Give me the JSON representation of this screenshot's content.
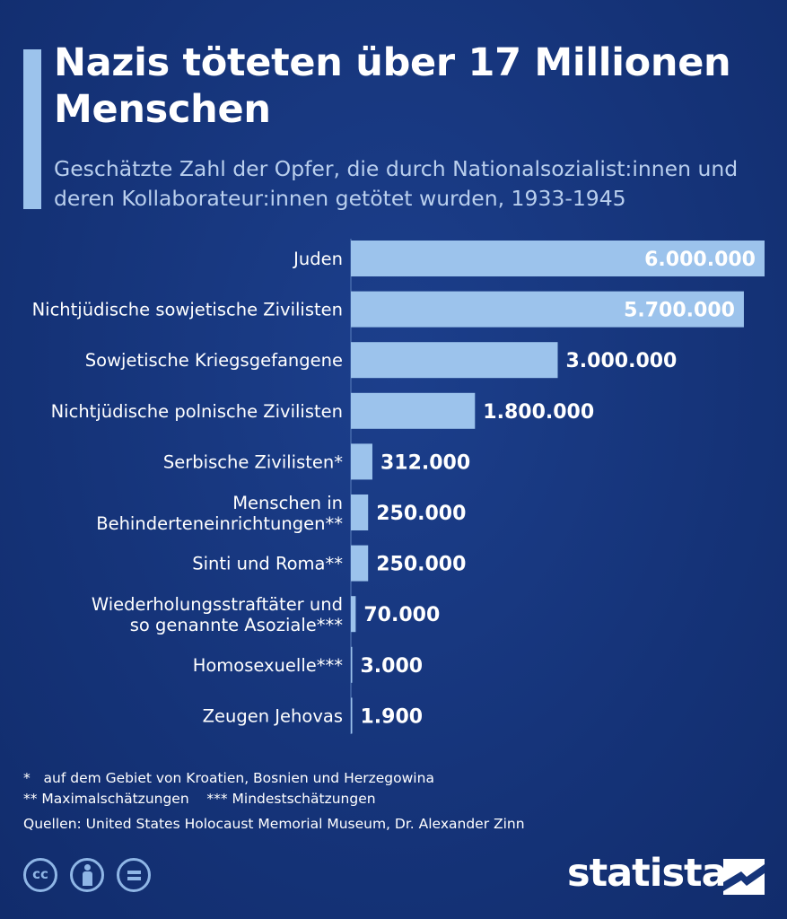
{
  "title": "Nazis töteten über 17 Millionen Menschen",
  "subtitle": "Geschätzte Zahl der Opfer, die durch Nationalsozialist:innen und deren Kollaborateur:innen getötet wurden, 1933-1945",
  "chart_data": {
    "type": "bar",
    "orientation": "horizontal",
    "title": "Nazis töteten über 17 Millionen Menschen",
    "subtitle": "Geschätzte Zahl der Opfer, die durch Nationalsozialist:innen und deren Kollaborateur:innen getötet wurden, 1933-1945",
    "categories": [
      [
        "Juden"
      ],
      [
        "Nichtjüdische sowjetische Zivilisten"
      ],
      [
        "Sowjetische Kriegsgefangene"
      ],
      [
        "Nichtjüdische polnische Zivilisten"
      ],
      [
        "Serbische Zivilisten*"
      ],
      [
        "Menschen in",
        "Behinderteneinrichtungen**"
      ],
      [
        "Sinti und Roma**"
      ],
      [
        "Wiederholungsstraftäter und",
        "so genannte Asoziale***"
      ],
      [
        "Homosexuelle***"
      ],
      [
        "Zeugen Jehovas"
      ]
    ],
    "values": [
      6000000,
      5700000,
      3000000,
      1800000,
      312000,
      250000,
      250000,
      70000,
      3000,
      1900
    ],
    "value_labels": [
      "6.000.000",
      "5.700.000",
      "3.000.000",
      "1.800.000",
      "312.000",
      "250.000",
      "250.000",
      "70.000",
      "3.000",
      "1.900"
    ],
    "xlim": [
      0,
      6000000
    ],
    "bar_color": "#9cc3ec",
    "grid": false,
    "legend": "none"
  },
  "footnotes": {
    "note1": "*   auf dem Gebiet von Kroatien, Bosnien und Herzegowina",
    "note2": "** Maximalschätzungen    *** Mindestschätzungen",
    "sources": "Quellen: United States Holocaust Memorial Museum, Dr. Alexander Zinn"
  },
  "license_icons": [
    "cc-icon",
    "by-icon",
    "nd-icon"
  ],
  "brand": "statista",
  "colors": {
    "background": "#16357a",
    "accent": "#9cc3ec",
    "subtitle": "#b9cfee"
  }
}
